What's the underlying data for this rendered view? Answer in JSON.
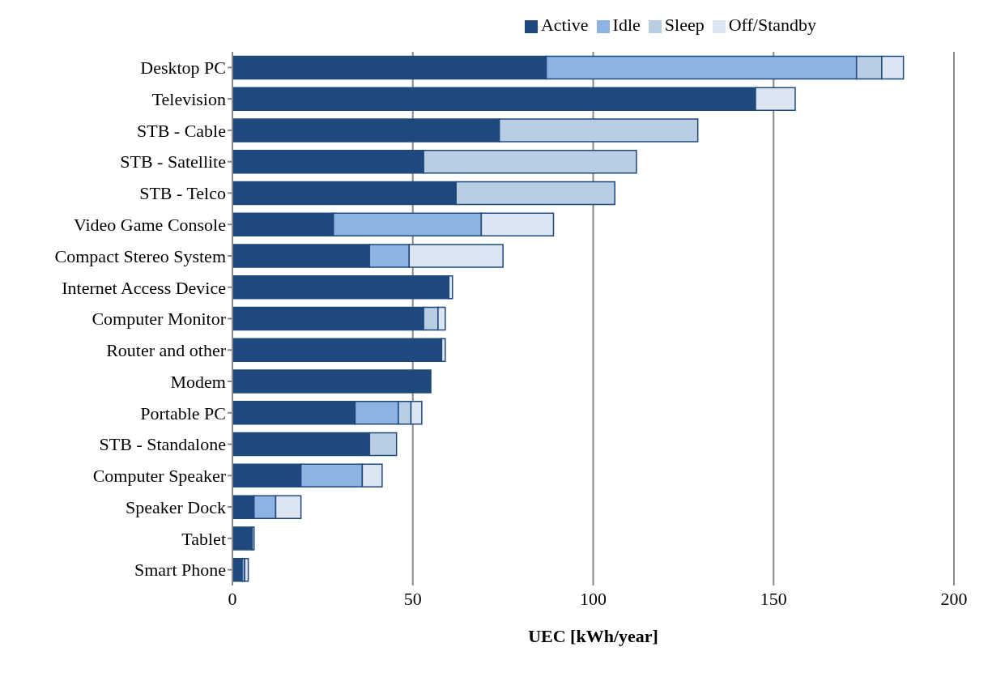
{
  "chart_data": {
    "type": "bar",
    "orientation": "horizontal",
    "stacked": true,
    "xlabel": "UEC [kWh/year]",
    "categories": [
      "Desktop PC",
      "Television",
      "STB - Cable",
      "STB - Satellite",
      "STB - Telco",
      "Video Game Console",
      "Compact Stereo System",
      "Internet Access Device",
      "Computer Monitor",
      "Router and other",
      "Modem",
      "Portable PC",
      "STB - Standalone ",
      "Computer Speaker",
      "Speaker Dock",
      "Tablet ",
      "Smart Phone"
    ],
    "series": [
      {
        "name": "Active",
        "color": "#1f497d",
        "values": [
          87,
          145,
          74,
          53,
          62,
          28,
          38,
          60,
          53,
          58,
          55,
          34,
          38,
          19,
          6,
          5.5,
          2.7
        ]
      },
      {
        "name": "Idle",
        "color": "#8db3e2",
        "values": [
          86,
          0,
          0,
          0,
          0,
          41,
          11,
          0,
          0,
          0,
          0,
          12,
          0,
          17,
          6,
          0,
          0.7
        ]
      },
      {
        "name": "Sleep",
        "color": "#b9cde5",
        "values": [
          7,
          0,
          55,
          59,
          44,
          0,
          0,
          0,
          4,
          0,
          0,
          3.5,
          7.5,
          0,
          0,
          0,
          0
        ]
      },
      {
        "name": "Off/Standby",
        "color": "#dce6f2",
        "values": [
          6,
          11,
          0,
          0,
          0,
          20,
          26,
          1,
          2,
          1,
          0,
          3,
          0,
          5.5,
          7,
          0.5,
          1
        ]
      }
    ],
    "xlim": [
      0,
      200
    ],
    "xticks": [
      0,
      50,
      100,
      150,
      200
    ],
    "grid": "x",
    "legend": "top"
  }
}
